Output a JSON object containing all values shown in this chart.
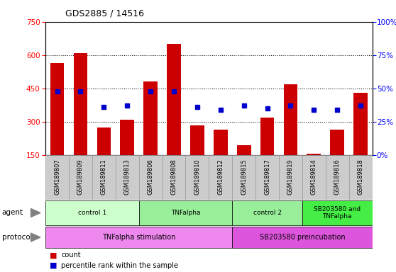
{
  "title": "GDS2885 / 14516",
  "samples": [
    "GSM189807",
    "GSM189809",
    "GSM189811",
    "GSM189813",
    "GSM189806",
    "GSM189808",
    "GSM189810",
    "GSM189812",
    "GSM189815",
    "GSM189817",
    "GSM189819",
    "GSM189814",
    "GSM189816",
    "GSM189818"
  ],
  "counts": [
    565,
    610,
    275,
    310,
    480,
    650,
    285,
    265,
    195,
    320,
    470,
    155,
    265,
    430
  ],
  "percentile_ranks": [
    48,
    48,
    36,
    37,
    48,
    48,
    36,
    34,
    37,
    35,
    37,
    34,
    34,
    37
  ],
  "left_ylim": [
    150,
    750
  ],
  "right_ylim": [
    0,
    100
  ],
  "left_yticks": [
    150,
    300,
    450,
    600,
    750
  ],
  "right_yticks": [
    0,
    25,
    50,
    75,
    100
  ],
  "bar_color": "#cc0000",
  "dot_color": "#0000cc",
  "agent_groups": [
    {
      "label": "control 1",
      "start": 0,
      "end": 4,
      "color": "#ccffcc"
    },
    {
      "label": "TNFalpha",
      "start": 4,
      "end": 8,
      "color": "#99ee99"
    },
    {
      "label": "control 2",
      "start": 8,
      "end": 11,
      "color": "#99ee99"
    },
    {
      "label": "SB203580 and\nTNFalpha",
      "start": 11,
      "end": 14,
      "color": "#44ee44"
    }
  ],
  "protocol_groups": [
    {
      "label": "TNFalpha stimulation",
      "start": 0,
      "end": 8,
      "color": "#ee88ee"
    },
    {
      "label": "SB203580 preincubation",
      "start": 8,
      "end": 14,
      "color": "#dd55dd"
    }
  ],
  "grid_yticks": [
    300,
    450,
    600
  ],
  "label_bg_color": "#cccccc",
  "label_bg_edge": "#999999"
}
